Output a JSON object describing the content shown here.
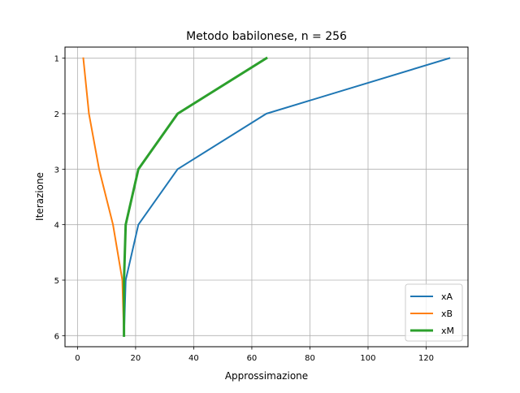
{
  "chart_data": {
    "type": "line",
    "title": "Metodo babilonese, n = 256",
    "xlabel": "Approssimazione",
    "ylabel": "Iterazione",
    "xlim": [
      -4.3,
      134.4
    ],
    "ylim": [
      6.2,
      0.8
    ],
    "y_inverted": true,
    "xticks": [
      0,
      20,
      40,
      60,
      80,
      100,
      120
    ],
    "yticks": [
      1,
      2,
      3,
      4,
      5,
      6
    ],
    "grid": true,
    "legend_position": "lower-right",
    "series": [
      {
        "name": "xA",
        "color": "#1f77b4",
        "width": 2,
        "x": [
          128.0,
          65.0,
          34.47,
          20.95,
          16.59,
          16.01
        ],
        "y": [
          1,
          2,
          3,
          4,
          5,
          6
        ]
      },
      {
        "name": "xB",
        "color": "#ff7f0e",
        "width": 2,
        "x": [
          2.0,
          3.94,
          7.43,
          12.22,
          15.43,
          15.99
        ],
        "y": [
          1,
          2,
          3,
          4,
          5,
          6
        ]
      },
      {
        "name": "xM",
        "color": "#2ca02c",
        "width": 3,
        "x": [
          65.0,
          34.47,
          20.95,
          16.59,
          16.01,
          16.0
        ],
        "y": [
          1,
          2,
          3,
          4,
          5,
          6
        ]
      }
    ]
  }
}
